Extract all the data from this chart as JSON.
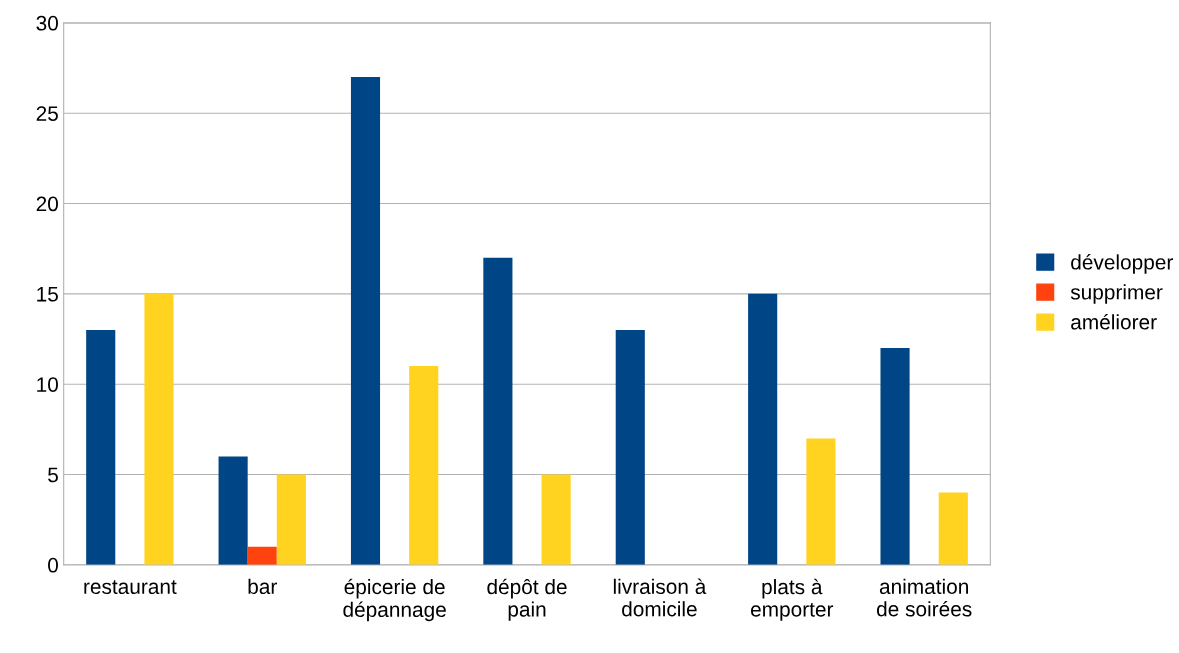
{
  "chart_data": {
    "type": "bar",
    "categories": [
      "restaurant",
      "bar",
      "épicerie de\ndépannage",
      "dépôt de\npain",
      "livraison à\ndomicile",
      "plats à\nemporter",
      "animation\nde soirées"
    ],
    "series": [
      {
        "name": "développer",
        "color": "#004586",
        "values": [
          13,
          6,
          27,
          17,
          13,
          15,
          12
        ]
      },
      {
        "name": "supprimer",
        "color": "#ff420e",
        "values": [
          0,
          1,
          0,
          0,
          0,
          0,
          0
        ]
      },
      {
        "name": "améliorer",
        "color": "#ffd320",
        "values": [
          15,
          5,
          11,
          5,
          0,
          7,
          4
        ]
      }
    ],
    "ylim": [
      0,
      30
    ],
    "yticks": [
      0,
      5,
      10,
      15,
      20,
      25,
      30
    ],
    "grid": "y",
    "legend": "right"
  }
}
